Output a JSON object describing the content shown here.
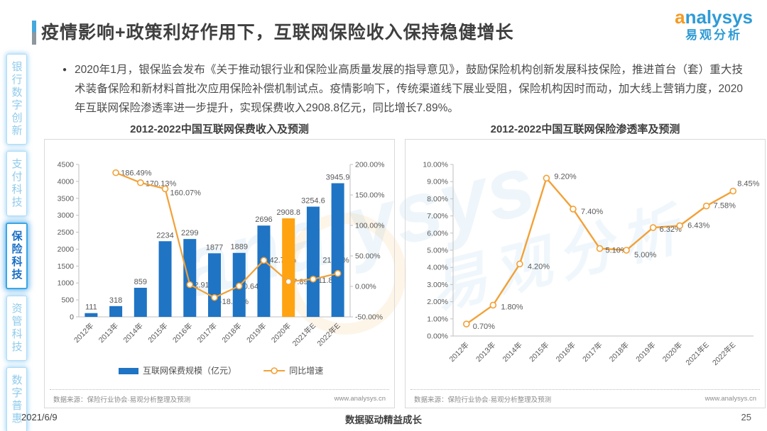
{
  "header": {
    "title": "疫情影响+政策利好作用下，互联网保险收入保持稳健增长",
    "logo": {
      "wordmark": "analysys",
      "wordmark_cn": "易观分析"
    }
  },
  "sidebar": {
    "items": [
      {
        "label": "银行数字创新",
        "active": false
      },
      {
        "label": "支付科技",
        "active": false
      },
      {
        "label": "保险科技",
        "active": true
      },
      {
        "label": "资管科技",
        "active": false
      },
      {
        "label": "数字普惠",
        "active": false
      }
    ]
  },
  "bullet": {
    "text": "2020年1月，银保监会发布《关于推动银行业和保险业高质量发展的指导意见》，鼓励保险机构创新发展科技保险，推进首台（套）重大技术装备保险和新材料首批次应用保险补偿机制试点。疫情影响下，传统渠道线下展业受阻，保险机构因时而动，加大线上营销力度，2020年互联网保险渗透率进一步提升，实现保费收入2908.8亿元，同比增长7.89%。"
  },
  "colors": {
    "bar_blue": "#1F74C4",
    "bar_highlight_orange": "#FFA311",
    "line_orange": "#F2A137",
    "axis_gray": "#BFBFBF",
    "data_label_gray": "#595959",
    "brand_blue": "#2E9BD5",
    "brand_orange": "#F59A23"
  },
  "chart_data": [
    {
      "type": "bar",
      "title": "2012-2022中国互联网保费收入及预测",
      "categories": [
        "2012年",
        "2013年",
        "2014年",
        "2015年",
        "2016年",
        "2017年",
        "2018年",
        "2019年",
        "2020年",
        "2021年E",
        "2022年E"
      ],
      "series": [
        {
          "name": "互联网保费规模（亿元）",
          "kind": "bar",
          "values": [
            111,
            318,
            859,
            2234,
            2299,
            1877,
            1889,
            2696,
            2908.8,
            3254.6,
            3945.9
          ],
          "labels": [
            "111",
            "318",
            "859",
            "2234",
            "2299",
            "1877",
            "1889",
            "2696",
            "2908.8",
            "3254.6",
            "3945.9"
          ],
          "highlight_index": 8
        },
        {
          "name": "同比增速",
          "kind": "line",
          "values": [
            null,
            186.49,
            170.13,
            160.07,
            2.91,
            -18.36,
            0.64,
            42.72,
            7.89,
            11.89,
            21.24
          ],
          "labels": [
            null,
            "186.49%",
            "170.13%",
            "160.07%",
            "2.91%",
            "-18.36%",
            "0.64%",
            "42.72%",
            "7.89%",
            "11.89%",
            "21.24%"
          ]
        }
      ],
      "axis_left": {
        "min": 0,
        "max": 4500,
        "step": 500
      },
      "axis_right": {
        "min": -50,
        "max": 200,
        "step": 50,
        "suffix": "%",
        "decimals": 2
      },
      "grid": false,
      "legend_position": "bottom"
    },
    {
      "type": "line",
      "title": "2012-2022中国互联网保险渗透率及预测",
      "categories": [
        "2012年",
        "2013年",
        "2014年",
        "2015年",
        "2016年",
        "2017年",
        "2018年",
        "2019年",
        "2020年",
        "2021年E",
        "2022年E"
      ],
      "series": [
        {
          "name": "互联网保险渗透率",
          "kind": "line",
          "values": [
            0.7,
            1.8,
            4.2,
            9.2,
            7.4,
            5.1,
            5.0,
            6.32,
            6.43,
            7.58,
            8.45
          ],
          "labels": [
            "0.70%",
            "1.80%",
            "4.20%",
            "9.20%",
            "7.40%",
            "5.10%",
            "5.00%",
            "6.32%",
            "6.43%",
            "7.58%",
            "8.45%"
          ]
        }
      ],
      "axis_left": {
        "min": 0,
        "max": 10,
        "step": 1,
        "suffix": "%",
        "decimals": 2
      },
      "grid": false,
      "legend_position": "none"
    }
  ],
  "panels": [
    {
      "source": "数据来源：保险行业协会·易观分析整理及预测",
      "site": "www.analysys.cn"
    },
    {
      "source": "数据来源：保险行业协会·易观分析整理及预测",
      "site": "www.analysys.cn"
    }
  ],
  "footer": {
    "date": "2021/6/9",
    "slogan": "数据驱动精益成长",
    "page": "25"
  }
}
